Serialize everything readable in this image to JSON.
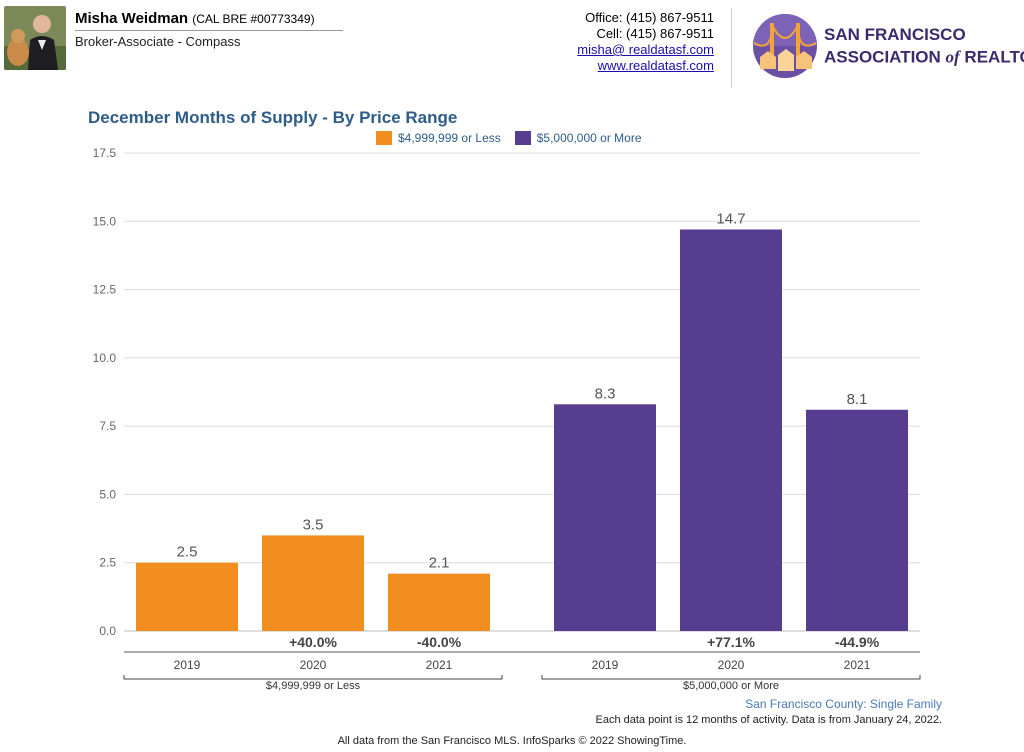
{
  "header": {
    "agent_name": "Misha Weidman",
    "agent_license": "(CAL BRE #00773349)",
    "agent_title": "Broker-Associate - Compass",
    "office": "Office: (415) 867-9511",
    "cell": "Cell: (415) 867-9511",
    "email": "misha@ realdatasf.com",
    "website": "www.realdatasf.com",
    "org_line1": "SAN FRANCISCO",
    "org_line2_a": "ASSOCIATION ",
    "org_line2_of": "of",
    "org_line2_b": " REALTORS",
    "org_reg": "®"
  },
  "colors": {
    "less": "#f28e1f",
    "more": "#563d8f",
    "title": "#2f5d8a",
    "grid": "#dcdcdc",
    "axis_text": "#666666"
  },
  "chart_data": {
    "type": "bar",
    "title": "December Months of Supply - By Price Range",
    "ylim": [
      0,
      17.5
    ],
    "yticks": [
      "0.0",
      "2.5",
      "5.0",
      "7.5",
      "10.0",
      "12.5",
      "15.0",
      "17.5"
    ],
    "grid": true,
    "legend_position": "top-center",
    "categories": [
      "2019",
      "2020",
      "2021"
    ],
    "series": [
      {
        "name": "$4,999,999 or Less",
        "group_label": "$4,999,999 or Less",
        "color": "#f28e1f",
        "values": [
          2.5,
          3.5,
          2.1
        ],
        "labels": [
          "2.5",
          "3.5",
          "2.1"
        ],
        "changes": [
          "",
          "+40.0%",
          "-40.0%"
        ]
      },
      {
        "name": "$5,000,000 or More",
        "group_label": "$5,000,000 or More",
        "color": "#563d8f",
        "values": [
          8.3,
          14.7,
          8.1
        ],
        "labels": [
          "8.3",
          "14.7",
          "8.1"
        ],
        "changes": [
          "",
          "+77.1%",
          "-44.9%"
        ]
      }
    ]
  },
  "footer": {
    "region": "San Francisco County: Single Family",
    "note": "Each data point is 12 months of activity. Data is from January 24, 2022.",
    "source": "All data from the San Francisco MLS. InfoSparks © 2022 ShowingTime."
  }
}
